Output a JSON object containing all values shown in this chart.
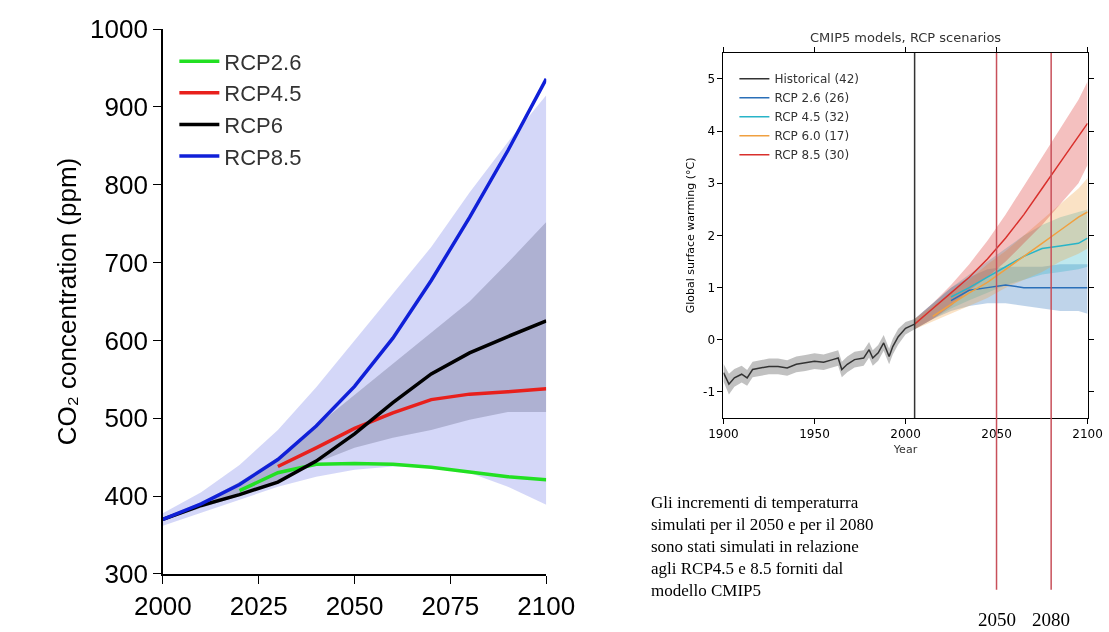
{
  "chart_data": [
    {
      "type": "line",
      "ylabel": "CO₂ concentration (ppm)",
      "x": [
        2000,
        2010,
        2020,
        2030,
        2040,
        2050,
        2060,
        2070,
        2080,
        2090,
        2100
      ],
      "xlim": [
        2000,
        2100
      ],
      "xticks": [
        2000,
        2025,
        2050,
        2075,
        2100
      ],
      "ylim": [
        300,
        1000
      ],
      "yticks": [
        300,
        400,
        500,
        600,
        700,
        800,
        900,
        1000
      ],
      "legend": "top left",
      "marker": "none",
      "line_style": "solid",
      "series": [
        {
          "name": "RCP2.6",
          "color": "#22e022",
          "values": [
            null,
            null,
            407,
            430,
            441,
            442,
            441,
            437,
            431,
            425,
            421
          ]
        },
        {
          "name": "RCP4.5",
          "color": "#e8201c",
          "values": [
            null,
            null,
            null,
            438,
            462,
            487,
            507,
            524,
            531,
            534,
            538
          ]
        },
        {
          "name": "RCP6",
          "color": "#000000",
          "values": [
            370,
            388,
            402,
            418,
            445,
            480,
            520,
            557,
            584,
            605,
            625
          ],
          "lower": [
            368,
            385,
            400,
            420,
            443,
            462,
            475,
            485,
            498,
            508,
            508
          ],
          "upper": [
            373,
            392,
            418,
            450,
            490,
            530,
            570,
            610,
            650,
            700,
            752
          ]
        },
        {
          "name": "RCP8.5",
          "color": "#1020d8",
          "values": [
            370,
            390,
            415,
            447,
            490,
            541,
            603,
            677,
            758,
            844,
            936
          ],
          "lower": [
            362,
            378,
            395,
            412,
            425,
            434,
            438,
            438,
            430,
            412,
            389
          ],
          "upper": [
            378,
            405,
            440,
            485,
            540,
            600,
            660,
            720,
            790,
            855,
            915
          ]
        }
      ]
    },
    {
      "type": "line",
      "title": "CMIP5 models, RCP scenarios",
      "xlabel": "Year",
      "ylabel": "Global surface warming (°C)",
      "xlim": [
        1900,
        2100
      ],
      "xticks": [
        1900,
        1950,
        2000,
        2050,
        2100
      ],
      "ylim": [
        -1.5,
        5.5
      ],
      "yticks": [
        -1,
        0,
        1,
        2,
        3,
        4,
        5
      ],
      "legend": "top left",
      "marker": "none",
      "line_style": "solid",
      "series": [
        {
          "name": "Historical (42)",
          "color": "#333333",
          "x": [
            1900,
            1903,
            1906,
            1910,
            1913,
            1916,
            1925,
            1930,
            1935,
            1940,
            1945,
            1950,
            1955,
            1960,
            1963,
            1965,
            1968,
            1972,
            1977,
            1980,
            1982,
            1985,
            1988,
            1991,
            1993,
            1996,
            2000,
            2005
          ],
          "values": [
            -0.63,
            -0.85,
            -0.73,
            -0.66,
            -0.73,
            -0.57,
            -0.51,
            -0.51,
            -0.54,
            -0.47,
            -0.44,
            -0.41,
            -0.43,
            -0.38,
            -0.35,
            -0.57,
            -0.47,
            -0.38,
            -0.35,
            -0.19,
            -0.35,
            -0.25,
            -0.06,
            -0.32,
            -0.13,
            0.06,
            0.22,
            0.3
          ],
          "lower": [
            -0.8,
            -1.05,
            -0.9,
            -0.82,
            -0.88,
            -0.72,
            -0.66,
            -0.66,
            -0.69,
            -0.62,
            -0.6,
            -0.56,
            -0.58,
            -0.53,
            -0.5,
            -0.72,
            -0.62,
            -0.53,
            -0.5,
            -0.34,
            -0.5,
            -0.4,
            -0.21,
            -0.47,
            -0.28,
            -0.09,
            0.1,
            0.2
          ],
          "upper": [
            -0.46,
            -0.65,
            -0.56,
            -0.5,
            -0.58,
            -0.42,
            -0.36,
            -0.36,
            -0.39,
            -0.32,
            -0.29,
            -0.26,
            -0.28,
            -0.23,
            -0.2,
            -0.42,
            -0.32,
            -0.23,
            -0.2,
            -0.04,
            -0.2,
            -0.1,
            0.09,
            -0.17,
            0.02,
            0.21,
            0.34,
            0.4
          ]
        },
        {
          "name": "RCP 2.6 (26)",
          "color": "#2a6fb8",
          "x": [
            2005,
            2015,
            2025,
            2035,
            2045,
            2055,
            2065,
            2075,
            2085,
            2095,
            2100
          ],
          "values": [
            null,
            null,
            0.75,
            0.95,
            1.0,
            1.05,
            1.0,
            1.0,
            1.0,
            1.0,
            1.0
          ],
          "lower": [
            0.2,
            0.4,
            0.55,
            0.65,
            0.7,
            0.7,
            0.65,
            0.6,
            0.55,
            0.55,
            0.5
          ],
          "upper": [
            0.4,
            0.7,
            1.0,
            1.2,
            1.35,
            1.4,
            1.4,
            1.4,
            1.45,
            1.45,
            1.45
          ]
        },
        {
          "name": "RCP 4.5 (32)",
          "color": "#28b4c8",
          "x": [
            2005,
            2015,
            2025,
            2035,
            2045,
            2055,
            2065,
            2075,
            2085,
            2095,
            2100
          ],
          "values": [
            null,
            null,
            0.82,
            1.0,
            1.2,
            1.4,
            1.6,
            1.75,
            1.8,
            1.85,
            1.95
          ],
          "lower": [
            0.2,
            0.4,
            0.6,
            0.76,
            0.9,
            1.05,
            1.15,
            1.25,
            1.3,
            1.35,
            1.4
          ],
          "upper": [
            0.4,
            0.7,
            1.0,
            1.25,
            1.5,
            1.75,
            2.0,
            2.2,
            2.35,
            2.45,
            2.5
          ]
        },
        {
          "name": "RCP 6.0 (17)",
          "color": "#f0a040",
          "x": [
            2005,
            2015,
            2025,
            2035,
            2045,
            2055,
            2065,
            2075,
            2085,
            2095,
            2100
          ],
          "values": [
            null,
            0.45,
            0.68,
            0.9,
            1.1,
            1.35,
            1.6,
            1.85,
            2.1,
            2.35,
            2.45
          ],
          "lower": [
            0.2,
            0.35,
            0.5,
            0.65,
            0.8,
            1.0,
            1.15,
            1.3,
            1.5,
            1.65,
            1.75
          ],
          "upper": [
            0.4,
            0.65,
            0.9,
            1.15,
            1.45,
            1.7,
            2.0,
            2.3,
            2.6,
            2.9,
            3.1
          ]
        },
        {
          "name": "RCP 8.5 (30)",
          "color": "#d9302c",
          "x": [
            2005,
            2015,
            2025,
            2035,
            2045,
            2055,
            2065,
            2075,
            2085,
            2095,
            2100
          ],
          "values": [
            0.3,
            0.6,
            0.9,
            1.2,
            1.55,
            1.95,
            2.4,
            2.9,
            3.4,
            3.9,
            4.15
          ],
          "lower": [
            0.2,
            0.4,
            0.65,
            0.95,
            1.2,
            1.5,
            1.85,
            2.2,
            2.6,
            3.0,
            3.35
          ],
          "upper": [
            0.4,
            0.7,
            1.05,
            1.45,
            1.9,
            2.4,
            2.95,
            3.5,
            4.05,
            4.6,
            4.95
          ]
        }
      ],
      "ref_lines": [
        {
          "axis": "x",
          "value": 2005,
          "color": "#333333"
        },
        {
          "axis": "x",
          "value": 2050,
          "label": "2050",
          "color": "#c8505a"
        },
        {
          "axis": "x",
          "value": 2080,
          "label": "2080",
          "color": "#c8505a"
        }
      ],
      "annotations": [
        "Gli incrementi di temperaturra simulati per il 2050 e per il 2080 sono stati simulati in relazione agli RCP4.5 e 8.5 forniti dal modello CMIP5"
      ]
    }
  ]
}
